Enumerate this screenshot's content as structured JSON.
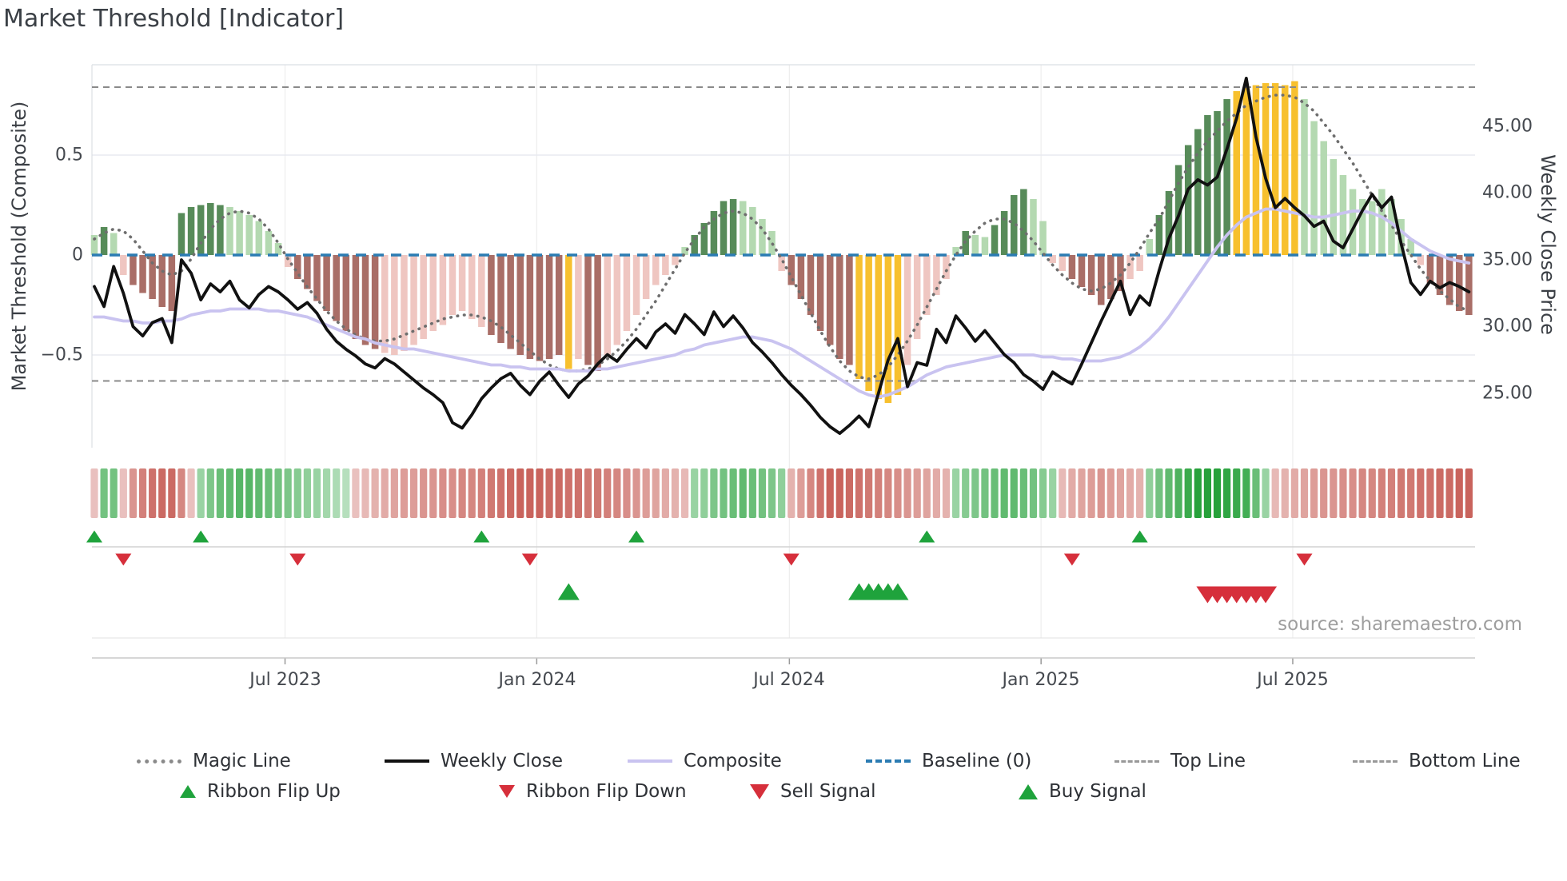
{
  "title": "Market Threshold [Indicator]",
  "source": "source: sharemaestro.com",
  "axes": {
    "left": {
      "title": "Market Threshold (Composite)",
      "ticks": [
        {
          "label": "0.5",
          "value": 0.5
        },
        {
          "label": "0",
          "value": 0
        },
        {
          "label": "−0.5",
          "value": -0.5
        }
      ]
    },
    "right": {
      "title": "Weekly Close Price",
      "ticks": [
        {
          "label": "45.00",
          "value": 45
        },
        {
          "label": "40.00",
          "value": 40
        },
        {
          "label": "35.00",
          "value": 35
        },
        {
          "label": "30.00",
          "value": 30
        },
        {
          "label": "25.00",
          "value": 25
        }
      ]
    },
    "x": {
      "ticks": [
        {
          "label": "Jul 2023",
          "week": 19.7
        },
        {
          "label": "Jan 2024",
          "week": 45.7
        },
        {
          "label": "Jul 2024",
          "week": 71.8
        },
        {
          "label": "Jan 2025",
          "week": 97.8
        },
        {
          "label": "Jul 2025",
          "week": 123.8
        }
      ]
    }
  },
  "legend": {
    "magic": "Magic Line",
    "weekly": "Weekly Close",
    "composite": "Composite",
    "baseline": "Baseline (0)",
    "top": "Top Line",
    "bottom": "Bottom Line",
    "flip_up": "Ribbon Flip Up",
    "flip_down": "Ribbon Flip Down",
    "sell": "Sell Signal",
    "buy": "Buy Signal"
  },
  "chart_data": {
    "type": "combo",
    "weeks": 143,
    "left_axis_range": [
      -1.0,
      1.0
    ],
    "right_axis_range": [
      20,
      50
    ],
    "reference_lines": {
      "baseline": 0,
      "top_line": 0.84,
      "bottom_line": -0.63
    },
    "palette": {
      "lg": "#b4d9b1",
      "dg": "#578b59",
      "lr": "#efc6c1",
      "dr": "#a96e67",
      "y": "#f7c02e",
      "ribbon_green": "#1f9e34",
      "ribbon_red": "#c4564e",
      "weekly_close": "#111111",
      "composite": "#c9c3f0",
      "magic": "#6e6e6e",
      "baseline_blue": "#2b7cb3",
      "ref_gray": "#8a8a8a",
      "signal_green": "#1fa33c",
      "signal_red": "#d62f3b"
    },
    "series": {
      "threshold_bars": {
        "values": [
          0.1,
          0.14,
          0.11,
          -0.1,
          -0.15,
          -0.19,
          -0.22,
          -0.26,
          -0.28,
          0.21,
          0.24,
          0.25,
          0.26,
          0.25,
          0.24,
          0.22,
          0.2,
          0.17,
          0.12,
          0.06,
          -0.06,
          -0.12,
          -0.17,
          -0.23,
          -0.28,
          -0.33,
          -0.38,
          -0.42,
          -0.45,
          -0.47,
          -0.49,
          -0.5,
          -0.48,
          -0.45,
          -0.42,
          -0.38,
          -0.35,
          -0.3,
          -0.28,
          -0.32,
          -0.36,
          -0.4,
          -0.44,
          -0.47,
          -0.5,
          -0.52,
          -0.53,
          -0.52,
          -0.5,
          -0.57,
          -0.52,
          -0.55,
          -0.58,
          -0.5,
          -0.45,
          -0.38,
          -0.3,
          -0.22,
          -0.15,
          -0.1,
          -0.05,
          0.04,
          0.1,
          0.16,
          0.22,
          0.27,
          0.28,
          0.27,
          0.24,
          0.18,
          0.12,
          -0.08,
          -0.15,
          -0.22,
          -0.3,
          -0.38,
          -0.45,
          -0.52,
          -0.55,
          -0.62,
          -0.68,
          -0.72,
          -0.74,
          -0.7,
          -0.55,
          -0.42,
          -0.3,
          -0.2,
          -0.12,
          0.04,
          0.12,
          0.1,
          0.09,
          0.15,
          0.22,
          0.3,
          0.33,
          0.28,
          0.17,
          -0.04,
          -0.08,
          -0.12,
          -0.16,
          -0.2,
          -0.25,
          -0.22,
          -0.18,
          -0.12,
          -0.08,
          0.08,
          0.2,
          0.32,
          0.45,
          0.55,
          0.63,
          0.7,
          0.72,
          0.78,
          0.82,
          0.84,
          0.85,
          0.86,
          0.86,
          0.85,
          0.87,
          0.78,
          0.67,
          0.57,
          0.48,
          0.4,
          0.33,
          0.28,
          0.27,
          0.33,
          0.28,
          0.18,
          0.08,
          -0.05,
          -0.14,
          -0.2,
          -0.25,
          -0.28,
          -0.3
        ],
        "colors": [
          "lg",
          "dg",
          "lg",
          "lr",
          "dr",
          "dr",
          "dr",
          "dr",
          "dr",
          "dg",
          "dg",
          "dg",
          "dg",
          "dg",
          "lg",
          "lg",
          "lg",
          "lg",
          "lg",
          "lg",
          "lr",
          "dr",
          "dr",
          "dr",
          "dr",
          "dr",
          "dr",
          "dr",
          "dr",
          "dr",
          "lr",
          "lr",
          "lr",
          "lr",
          "lr",
          "lr",
          "lr",
          "lr",
          "lr",
          "lr",
          "lr",
          "dr",
          "dr",
          "dr",
          "dr",
          "dr",
          "dr",
          "dr",
          "dr",
          "y",
          "lr",
          "dr",
          "dr",
          "lr",
          "lr",
          "lr",
          "lr",
          "lr",
          "lr",
          "lr",
          "lr",
          "lg",
          "dg",
          "dg",
          "dg",
          "dg",
          "dg",
          "lg",
          "lg",
          "lg",
          "lg",
          "lr",
          "dr",
          "dr",
          "dr",
          "dr",
          "dr",
          "dr",
          "dr",
          "y",
          "y",
          "y",
          "y",
          "y",
          "lr",
          "lr",
          "lr",
          "lr",
          "lr",
          "lg",
          "dg",
          "lg",
          "lg",
          "dg",
          "dg",
          "dg",
          "dg",
          "lg",
          "lg",
          "lr",
          "lr",
          "dr",
          "dr",
          "dr",
          "dr",
          "dr",
          "dr",
          "lr",
          "lr",
          "lg",
          "dg",
          "dg",
          "dg",
          "dg",
          "dg",
          "dg",
          "dg",
          "dg",
          "y",
          "y",
          "y",
          "y",
          "y",
          "y",
          "y",
          "lg",
          "lg",
          "lg",
          "lg",
          "lg",
          "lg",
          "lg",
          "lg",
          "lg",
          "lg",
          "lg",
          "lg",
          "lr",
          "dr",
          "dr",
          "dr",
          "dr",
          "dr"
        ]
      },
      "weekly_close": [
        33.0,
        31.5,
        34.5,
        32.5,
        30.0,
        29.3,
        30.3,
        30.6,
        28.8,
        35.0,
        34.0,
        32.0,
        33.2,
        32.6,
        33.4,
        32.0,
        31.4,
        32.4,
        33.0,
        32.6,
        32.0,
        31.3,
        31.8,
        31.0,
        29.8,
        28.9,
        28.3,
        27.8,
        27.2,
        26.9,
        27.6,
        27.2,
        26.6,
        26.0,
        25.4,
        24.9,
        24.3,
        22.8,
        22.4,
        23.4,
        24.6,
        25.4,
        26.1,
        26.5,
        25.6,
        24.9,
        25.9,
        26.6,
        25.6,
        24.7,
        25.7,
        26.3,
        27.2,
        27.9,
        27.4,
        28.3,
        29.1,
        28.4,
        29.6,
        30.2,
        29.5,
        30.9,
        30.2,
        29.4,
        31.1,
        30.0,
        30.8,
        29.9,
        28.8,
        28.1,
        27.3,
        26.4,
        25.6,
        24.9,
        24.1,
        23.2,
        22.5,
        22.0,
        22.6,
        23.3,
        22.5,
        25.0,
        27.5,
        29.1,
        25.5,
        27.3,
        27.1,
        29.8,
        28.8,
        30.8,
        29.9,
        28.9,
        29.7,
        28.8,
        27.9,
        27.3,
        26.4,
        25.9,
        25.3,
        26.6,
        26.1,
        25.7,
        27.2,
        28.8,
        30.4,
        31.9,
        33.4,
        30.9,
        32.3,
        31.6,
        34.2,
        36.6,
        38.3,
        40.3,
        41.0,
        40.6,
        41.2,
        43.3,
        45.6,
        48.6,
        44.2,
        41.1,
        38.9,
        39.6,
        38.9,
        38.3,
        37.5,
        37.9,
        36.4,
        35.9,
        37.3,
        38.7,
        39.9,
        38.9,
        39.7,
        36.2,
        33.3,
        32.4,
        33.4,
        32.9,
        33.3,
        33.0,
        32.6
      ],
      "composite": [
        -0.31,
        -0.31,
        -0.32,
        -0.33,
        -0.33,
        -0.34,
        -0.34,
        -0.33,
        -0.33,
        -0.32,
        -0.3,
        -0.29,
        -0.28,
        -0.28,
        -0.27,
        -0.27,
        -0.27,
        -0.27,
        -0.28,
        -0.28,
        -0.29,
        -0.3,
        -0.31,
        -0.33,
        -0.35,
        -0.37,
        -0.39,
        -0.41,
        -0.42,
        -0.44,
        -0.45,
        -0.46,
        -0.47,
        -0.47,
        -0.48,
        -0.49,
        -0.5,
        -0.51,
        -0.52,
        -0.53,
        -0.54,
        -0.55,
        -0.55,
        -0.56,
        -0.56,
        -0.57,
        -0.57,
        -0.57,
        -0.57,
        -0.58,
        -0.58,
        -0.58,
        -0.57,
        -0.57,
        -0.56,
        -0.55,
        -0.54,
        -0.53,
        -0.52,
        -0.51,
        -0.5,
        -0.48,
        -0.47,
        -0.45,
        -0.44,
        -0.43,
        -0.42,
        -0.41,
        -0.41,
        -0.42,
        -0.43,
        -0.45,
        -0.47,
        -0.5,
        -0.53,
        -0.56,
        -0.59,
        -0.62,
        -0.65,
        -0.68,
        -0.7,
        -0.71,
        -0.7,
        -0.68,
        -0.66,
        -0.63,
        -0.6,
        -0.58,
        -0.56,
        -0.55,
        -0.54,
        -0.53,
        -0.52,
        -0.51,
        -0.5,
        -0.5,
        -0.5,
        -0.5,
        -0.51,
        -0.51,
        -0.52,
        -0.52,
        -0.53,
        -0.53,
        -0.53,
        -0.52,
        -0.51,
        -0.49,
        -0.46,
        -0.42,
        -0.37,
        -0.31,
        -0.24,
        -0.17,
        -0.1,
        -0.03,
        0.04,
        0.1,
        0.15,
        0.19,
        0.21,
        0.23,
        0.23,
        0.22,
        0.21,
        0.2,
        0.19,
        0.19,
        0.2,
        0.21,
        0.22,
        0.22,
        0.21,
        0.19,
        0.16,
        0.12,
        0.08,
        0.05,
        0.02,
        0.0,
        -0.02,
        -0.03,
        -0.04
      ],
      "magic_line": [
        0.08,
        0.11,
        0.13,
        0.12,
        0.08,
        0.02,
        -0.04,
        -0.08,
        -0.1,
        -0.08,
        -0.02,
        0.06,
        0.13,
        0.18,
        0.21,
        0.22,
        0.21,
        0.18,
        0.13,
        0.06,
        -0.02,
        -0.09,
        -0.16,
        -0.22,
        -0.28,
        -0.33,
        -0.37,
        -0.4,
        -0.42,
        -0.43,
        -0.43,
        -0.42,
        -0.4,
        -0.38,
        -0.36,
        -0.34,
        -0.32,
        -0.31,
        -0.3,
        -0.3,
        -0.31,
        -0.33,
        -0.36,
        -0.4,
        -0.44,
        -0.48,
        -0.52,
        -0.55,
        -0.57,
        -0.58,
        -0.58,
        -0.57,
        -0.55,
        -0.52,
        -0.48,
        -0.43,
        -0.37,
        -0.3,
        -0.23,
        -0.15,
        -0.07,
        0.01,
        0.08,
        0.14,
        0.18,
        0.21,
        0.22,
        0.21,
        0.18,
        0.13,
        0.06,
        -0.02,
        -0.11,
        -0.2,
        -0.29,
        -0.38,
        -0.46,
        -0.53,
        -0.58,
        -0.61,
        -0.62,
        -0.6,
        -0.56,
        -0.5,
        -0.43,
        -0.35,
        -0.26,
        -0.17,
        -0.08,
        0.0,
        0.07,
        0.12,
        0.16,
        0.18,
        0.18,
        0.16,
        0.12,
        0.07,
        0.01,
        -0.05,
        -0.1,
        -0.14,
        -0.17,
        -0.18,
        -0.17,
        -0.14,
        -0.1,
        -0.04,
        0.03,
        0.11,
        0.18,
        0.27,
        0.36,
        0.44,
        0.51,
        0.57,
        0.62,
        0.67,
        0.71,
        0.75,
        0.77,
        0.79,
        0.8,
        0.8,
        0.79,
        0.76,
        0.72,
        0.66,
        0.6,
        0.53,
        0.46,
        0.38,
        0.3,
        0.22,
        0.15,
        0.07,
        0.0,
        -0.07,
        -0.13,
        -0.18,
        -0.22,
        -0.26,
        -0.28
      ],
      "ribbon": [
        -0.2,
        0.5,
        0.5,
        -0.2,
        -0.5,
        -0.65,
        -0.75,
        -0.8,
        -0.8,
        -0.6,
        -0.2,
        0.3,
        0.45,
        0.55,
        0.6,
        0.65,
        0.65,
        0.6,
        0.55,
        0.5,
        0.45,
        0.4,
        0.35,
        0.3,
        0.25,
        0.2,
        0.15,
        -0.2,
        -0.25,
        -0.3,
        -0.35,
        -0.4,
        -0.45,
        -0.45,
        -0.5,
        -0.5,
        -0.55,
        -0.55,
        -0.6,
        -0.6,
        -0.65,
        -0.7,
        -0.75,
        -0.8,
        -0.85,
        -0.85,
        -0.85,
        -0.8,
        -0.8,
        -0.75,
        -0.75,
        -0.7,
        -0.7,
        -0.65,
        -0.6,
        -0.55,
        -0.5,
        -0.45,
        -0.4,
        -0.35,
        -0.3,
        -0.25,
        0.3,
        0.35,
        0.45,
        0.5,
        0.55,
        0.6,
        0.55,
        0.5,
        0.45,
        0.35,
        -0.3,
        -0.45,
        -0.6,
        -0.75,
        -0.85,
        -0.85,
        -0.8,
        -0.75,
        -0.7,
        -0.65,
        -0.6,
        -0.55,
        -0.5,
        -0.45,
        -0.4,
        -0.35,
        -0.3,
        0.3,
        0.4,
        0.45,
        0.5,
        0.55,
        0.6,
        0.6,
        0.55,
        0.5,
        0.4,
        0.3,
        -0.25,
        -0.35,
        -0.4,
        -0.45,
        -0.5,
        -0.45,
        -0.4,
        -0.35,
        -0.3,
        0.35,
        0.5,
        0.6,
        0.7,
        0.8,
        0.9,
        0.9,
        0.9,
        0.85,
        0.8,
        0.75,
        0.55,
        0.3,
        -0.25,
        -0.3,
        -0.35,
        -0.4,
        -0.45,
        -0.5,
        -0.5,
        -0.55,
        -0.55,
        -0.6,
        -0.6,
        -0.65,
        -0.65,
        -0.7,
        -0.7,
        -0.75,
        -0.75,
        -0.8,
        -0.8,
        -0.85,
        -0.85
      ]
    },
    "signals": {
      "ribbon_flip_up": [
        0,
        11,
        40,
        56,
        86,
        108
      ],
      "ribbon_flip_down": [
        3,
        21,
        45,
        72,
        101,
        125
      ],
      "buy": [
        49,
        79,
        80,
        81,
        82,
        83
      ],
      "sell": [
        115,
        116,
        117,
        118,
        119,
        120,
        121
      ]
    }
  }
}
